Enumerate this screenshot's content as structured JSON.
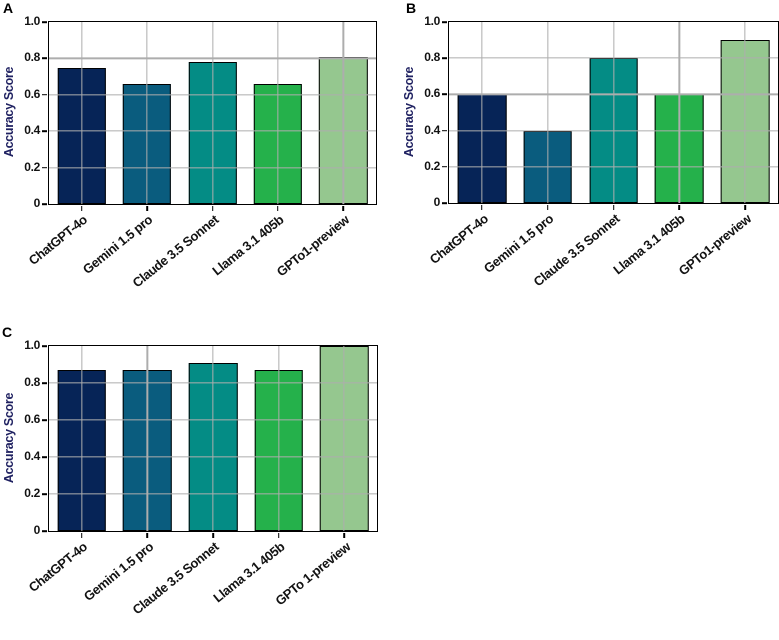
{
  "colors": {
    "bar_palette": [
      "#062457",
      "#0a5c7e",
      "#048c85",
      "#25b14b",
      "#95c78f"
    ],
    "grid": "#adadad",
    "spine": "#000000",
    "bar_edge": "#000000",
    "axis_title": "#1f2161",
    "tick_label": "#121212",
    "panel_letter": "#000000",
    "background": "#ffffff"
  },
  "chart_data": [
    {
      "type": "bar",
      "panel_label": "A",
      "title": "",
      "xlabel": "",
      "ylabel": "Accuracy Score",
      "categories": [
        "ChatGPT-4o",
        "Gemini 1.5 pro",
        "Claude 3.5 Sonnet",
        "Llama 3.1 405b",
        "GPTo1-preview"
      ],
      "values": [
        0.75,
        0.66,
        0.78,
        0.66,
        0.81
      ],
      "ylim": [
        0,
        1.0
      ],
      "yticks": [
        0,
        0.2,
        0.4,
        0.6,
        0.8,
        1.0
      ],
      "ytick_labels": [
        "0",
        "0.2",
        "0.4",
        "0.6",
        "0.8",
        "1.0"
      ],
      "grid": true,
      "legend": "none"
    },
    {
      "type": "bar",
      "panel_label": "B",
      "title": "",
      "xlabel": "",
      "ylabel": "Accuracy Score",
      "categories": [
        "ChatGPT-4o",
        "Gemini 1.5 pro",
        "Claude 3.5 Sonnet",
        "Llama 3.1 405b",
        "GPTo1-preview"
      ],
      "values": [
        0.6,
        0.4,
        0.8,
        0.6,
        0.9
      ],
      "ylim": [
        0,
        1.0
      ],
      "yticks": [
        0,
        0.2,
        0.4,
        0.6,
        0.8,
        1.0
      ],
      "ytick_labels": [
        "0",
        "0.2",
        "0.4",
        "0.6",
        "0.8",
        "1.0"
      ],
      "grid": true,
      "legend": "none"
    },
    {
      "type": "bar",
      "panel_label": "C",
      "title": "",
      "xlabel": "",
      "ylabel": "Accuracy Score",
      "categories": [
        "ChatGPT-4o",
        "Gemini 1.5 pro",
        "Claude 3.5 Sonnet",
        "Llama 3.1 405b",
        "GPTo 1-preview"
      ],
      "values": [
        0.87,
        0.87,
        0.91,
        0.87,
        1.0
      ],
      "ylim": [
        0,
        1.0
      ],
      "yticks": [
        0,
        0.2,
        0.4,
        0.6,
        0.8,
        1.0
      ],
      "ytick_labels": [
        "0",
        "0.2",
        "0.4",
        "0.6",
        "0.8",
        "1.0"
      ],
      "grid": true,
      "legend": "none"
    }
  ]
}
